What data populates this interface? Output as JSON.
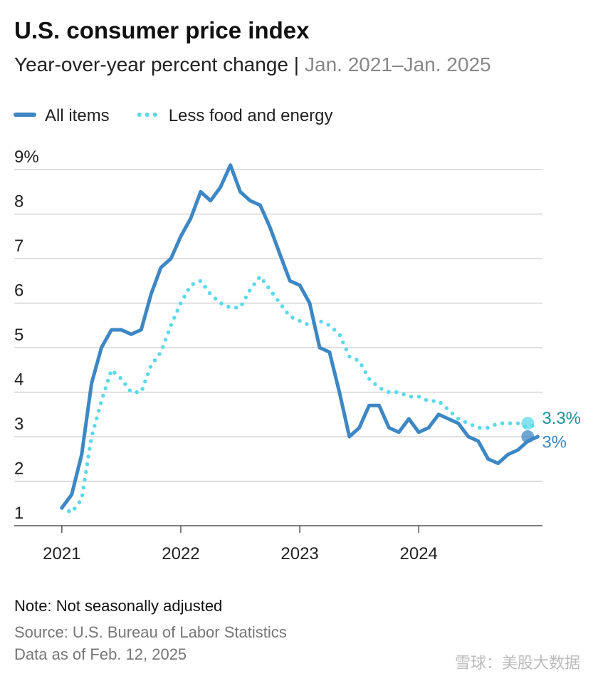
{
  "chart_data": {
    "type": "line",
    "title": "U.S. consumer price index",
    "subtitle": "Year-over-year percent change |",
    "subtitle_range": "Jan. 2021–Jan. 2025",
    "x": [
      2021,
      2021.083,
      2021.167,
      2021.25,
      2021.333,
      2021.417,
      2021.5,
      2021.583,
      2021.667,
      2021.75,
      2021.833,
      2021.917,
      2022,
      2022.083,
      2022.167,
      2022.25,
      2022.333,
      2022.417,
      2022.5,
      2022.583,
      2022.667,
      2022.75,
      2022.833,
      2022.917,
      2023,
      2023.083,
      2023.167,
      2023.25,
      2023.333,
      2023.417,
      2023.5,
      2023.583,
      2023.667,
      2023.75,
      2023.833,
      2023.917,
      2024,
      2024.083,
      2024.167,
      2024.25,
      2024.333,
      2024.417,
      2024.5,
      2024.583,
      2024.667,
      2024.75,
      2024.833,
      2024.917,
      2025
    ],
    "series": [
      {
        "name": "All items",
        "color": "#3d87c4",
        "style": "solid",
        "end_label": "3%",
        "values": [
          1.4,
          1.7,
          2.6,
          4.2,
          5.0,
          5.4,
          5.4,
          5.3,
          5.4,
          6.2,
          6.8,
          7.0,
          7.5,
          7.9,
          8.5,
          8.3,
          8.6,
          9.1,
          8.5,
          8.3,
          8.2,
          7.7,
          7.1,
          6.5,
          6.4,
          6.0,
          5.0,
          4.9,
          4.0,
          3.0,
          3.2,
          3.7,
          3.7,
          3.2,
          3.1,
          3.4,
          3.1,
          3.2,
          3.5,
          3.4,
          3.3,
          3.0,
          2.9,
          2.5,
          2.4,
          2.6,
          2.7,
          2.9,
          3.0
        ]
      },
      {
        "name": "Less food and energy",
        "color": "#5bd9e8",
        "style": "dotted",
        "end_label": "3.3%",
        "values": [
          1.4,
          1.3,
          1.6,
          3.0,
          3.8,
          4.5,
          4.3,
          4.0,
          4.0,
          4.6,
          4.9,
          5.5,
          6.0,
          6.4,
          6.5,
          6.2,
          6.0,
          5.9,
          5.9,
          6.3,
          6.6,
          6.3,
          6.0,
          5.7,
          5.6,
          5.5,
          5.6,
          5.5,
          5.3,
          4.8,
          4.7,
          4.3,
          4.1,
          4.0,
          4.0,
          3.9,
          3.9,
          3.8,
          3.8,
          3.6,
          3.4,
          3.3,
          3.2,
          3.2,
          3.3,
          3.3,
          3.3,
          3.2,
          3.3
        ]
      }
    ],
    "xlim": [
      2020.6,
      2025.04
    ],
    "xticks": [
      2021,
      2022,
      2023,
      2024
    ],
    "ylim": [
      1,
      9
    ],
    "yticks": [
      1,
      2,
      3,
      4,
      5,
      6,
      7,
      8,
      {
        "value": 9,
        "label": "9%"
      }
    ],
    "grid": true,
    "note": "Note: Not seasonally adjusted",
    "source": "Source: U.S. Bureau of Labor Statistics",
    "data_as_of": "Data as of Feb. 12, 2025",
    "watermark": "雪球：美股大数据"
  }
}
